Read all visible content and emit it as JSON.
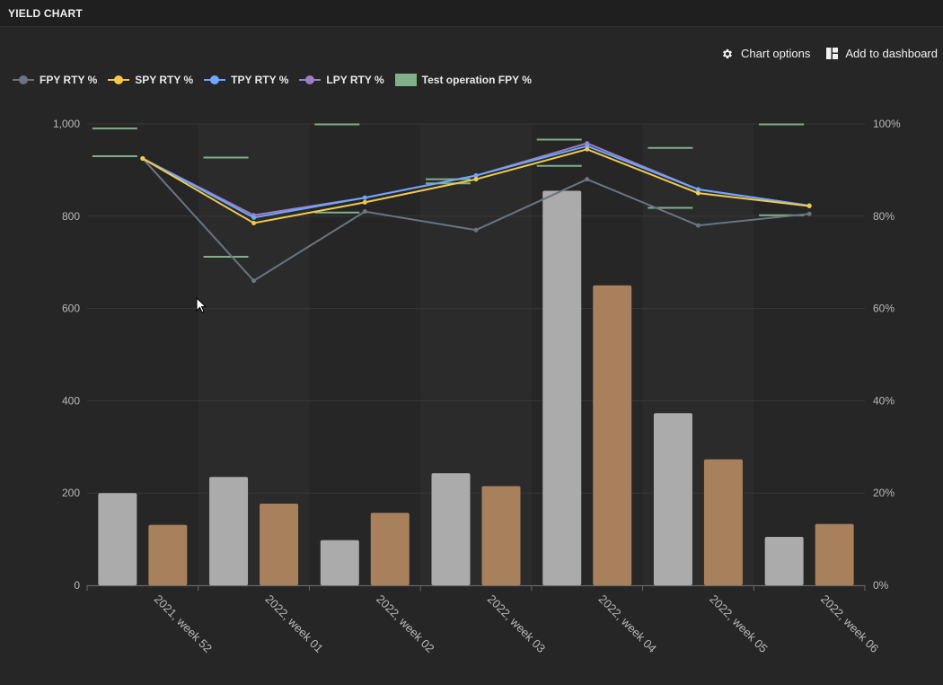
{
  "header": {
    "title": "YIELD CHART"
  },
  "toolbar": {
    "chart_options_label": "Chart options",
    "add_dashboard_label": "Add to dashboard"
  },
  "colors": {
    "fpy_line": "#6b7480",
    "spy_line": "#f2c94c",
    "tpy_line": "#6ea8ff",
    "lpy_line": "#9b7fc4",
    "test_op": "#7fb08a",
    "bar_gray": "#ababab",
    "bar_brown": "#a8805c"
  },
  "chart_data": {
    "type": "bar",
    "categories": [
      "2021, week 52",
      "2022, week 01",
      "2022, week 02",
      "2022, week 03",
      "2022, week 04",
      "2022, week 05",
      "2022, week 06"
    ],
    "y_left": {
      "ylim": [
        0,
        1000
      ],
      "ticks": [
        "0",
        "200",
        "400",
        "600",
        "800",
        "1,000"
      ]
    },
    "y_right": {
      "ylim": [
        0,
        100
      ],
      "ticks": [
        "0%",
        "20%",
        "40%",
        "60%",
        "80%",
        "100%"
      ]
    },
    "grid": true,
    "legend_position": "top-left",
    "bar_series": [
      {
        "values": [
          200,
          235,
          98,
          243,
          855,
          373,
          105
        ]
      },
      {
        "values": [
          131,
          177,
          157,
          215,
          650,
          273,
          133
        ]
      }
    ],
    "line_series": [
      {
        "name": "FPY RTY %",
        "values": [
          92.5,
          66,
          81,
          77,
          88,
          78,
          80.5
        ]
      },
      {
        "name": "SPY RTY %",
        "values": [
          92.5,
          78.5,
          83,
          88,
          94.5,
          85,
          82.2
        ]
      },
      {
        "name": "TPY RTY %",
        "values": [
          92.5,
          79.7,
          84,
          88.8,
          95.2,
          85.8,
          82.3
        ]
      },
      {
        "name": "LPY RTY %",
        "values": [
          92.5,
          80.2,
          84,
          88.8,
          95.8,
          85.8,
          82.3
        ]
      }
    ],
    "marker_series": {
      "name": "Test operation FPY %",
      "points": [
        [
          0,
          93.0
        ],
        [
          0,
          99.0
        ],
        [
          1,
          71.2
        ],
        [
          1,
          92.7
        ],
        [
          2,
          80.8
        ],
        [
          2,
          99.9
        ],
        [
          3,
          87.1
        ],
        [
          3,
          88.0
        ],
        [
          4,
          90.9
        ],
        [
          4,
          96.6
        ],
        [
          5,
          81.8
        ],
        [
          5,
          94.8
        ],
        [
          6,
          80.2
        ],
        [
          6,
          99.9
        ]
      ]
    }
  }
}
